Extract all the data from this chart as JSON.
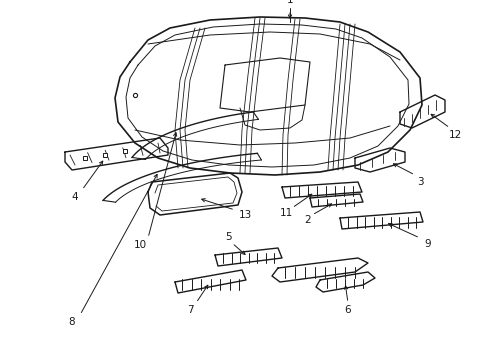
{
  "background_color": "#ffffff",
  "line_color": "#1a1a1a",
  "figsize": [
    4.89,
    3.6
  ],
  "dpi": 100,
  "font_size": 7.5
}
